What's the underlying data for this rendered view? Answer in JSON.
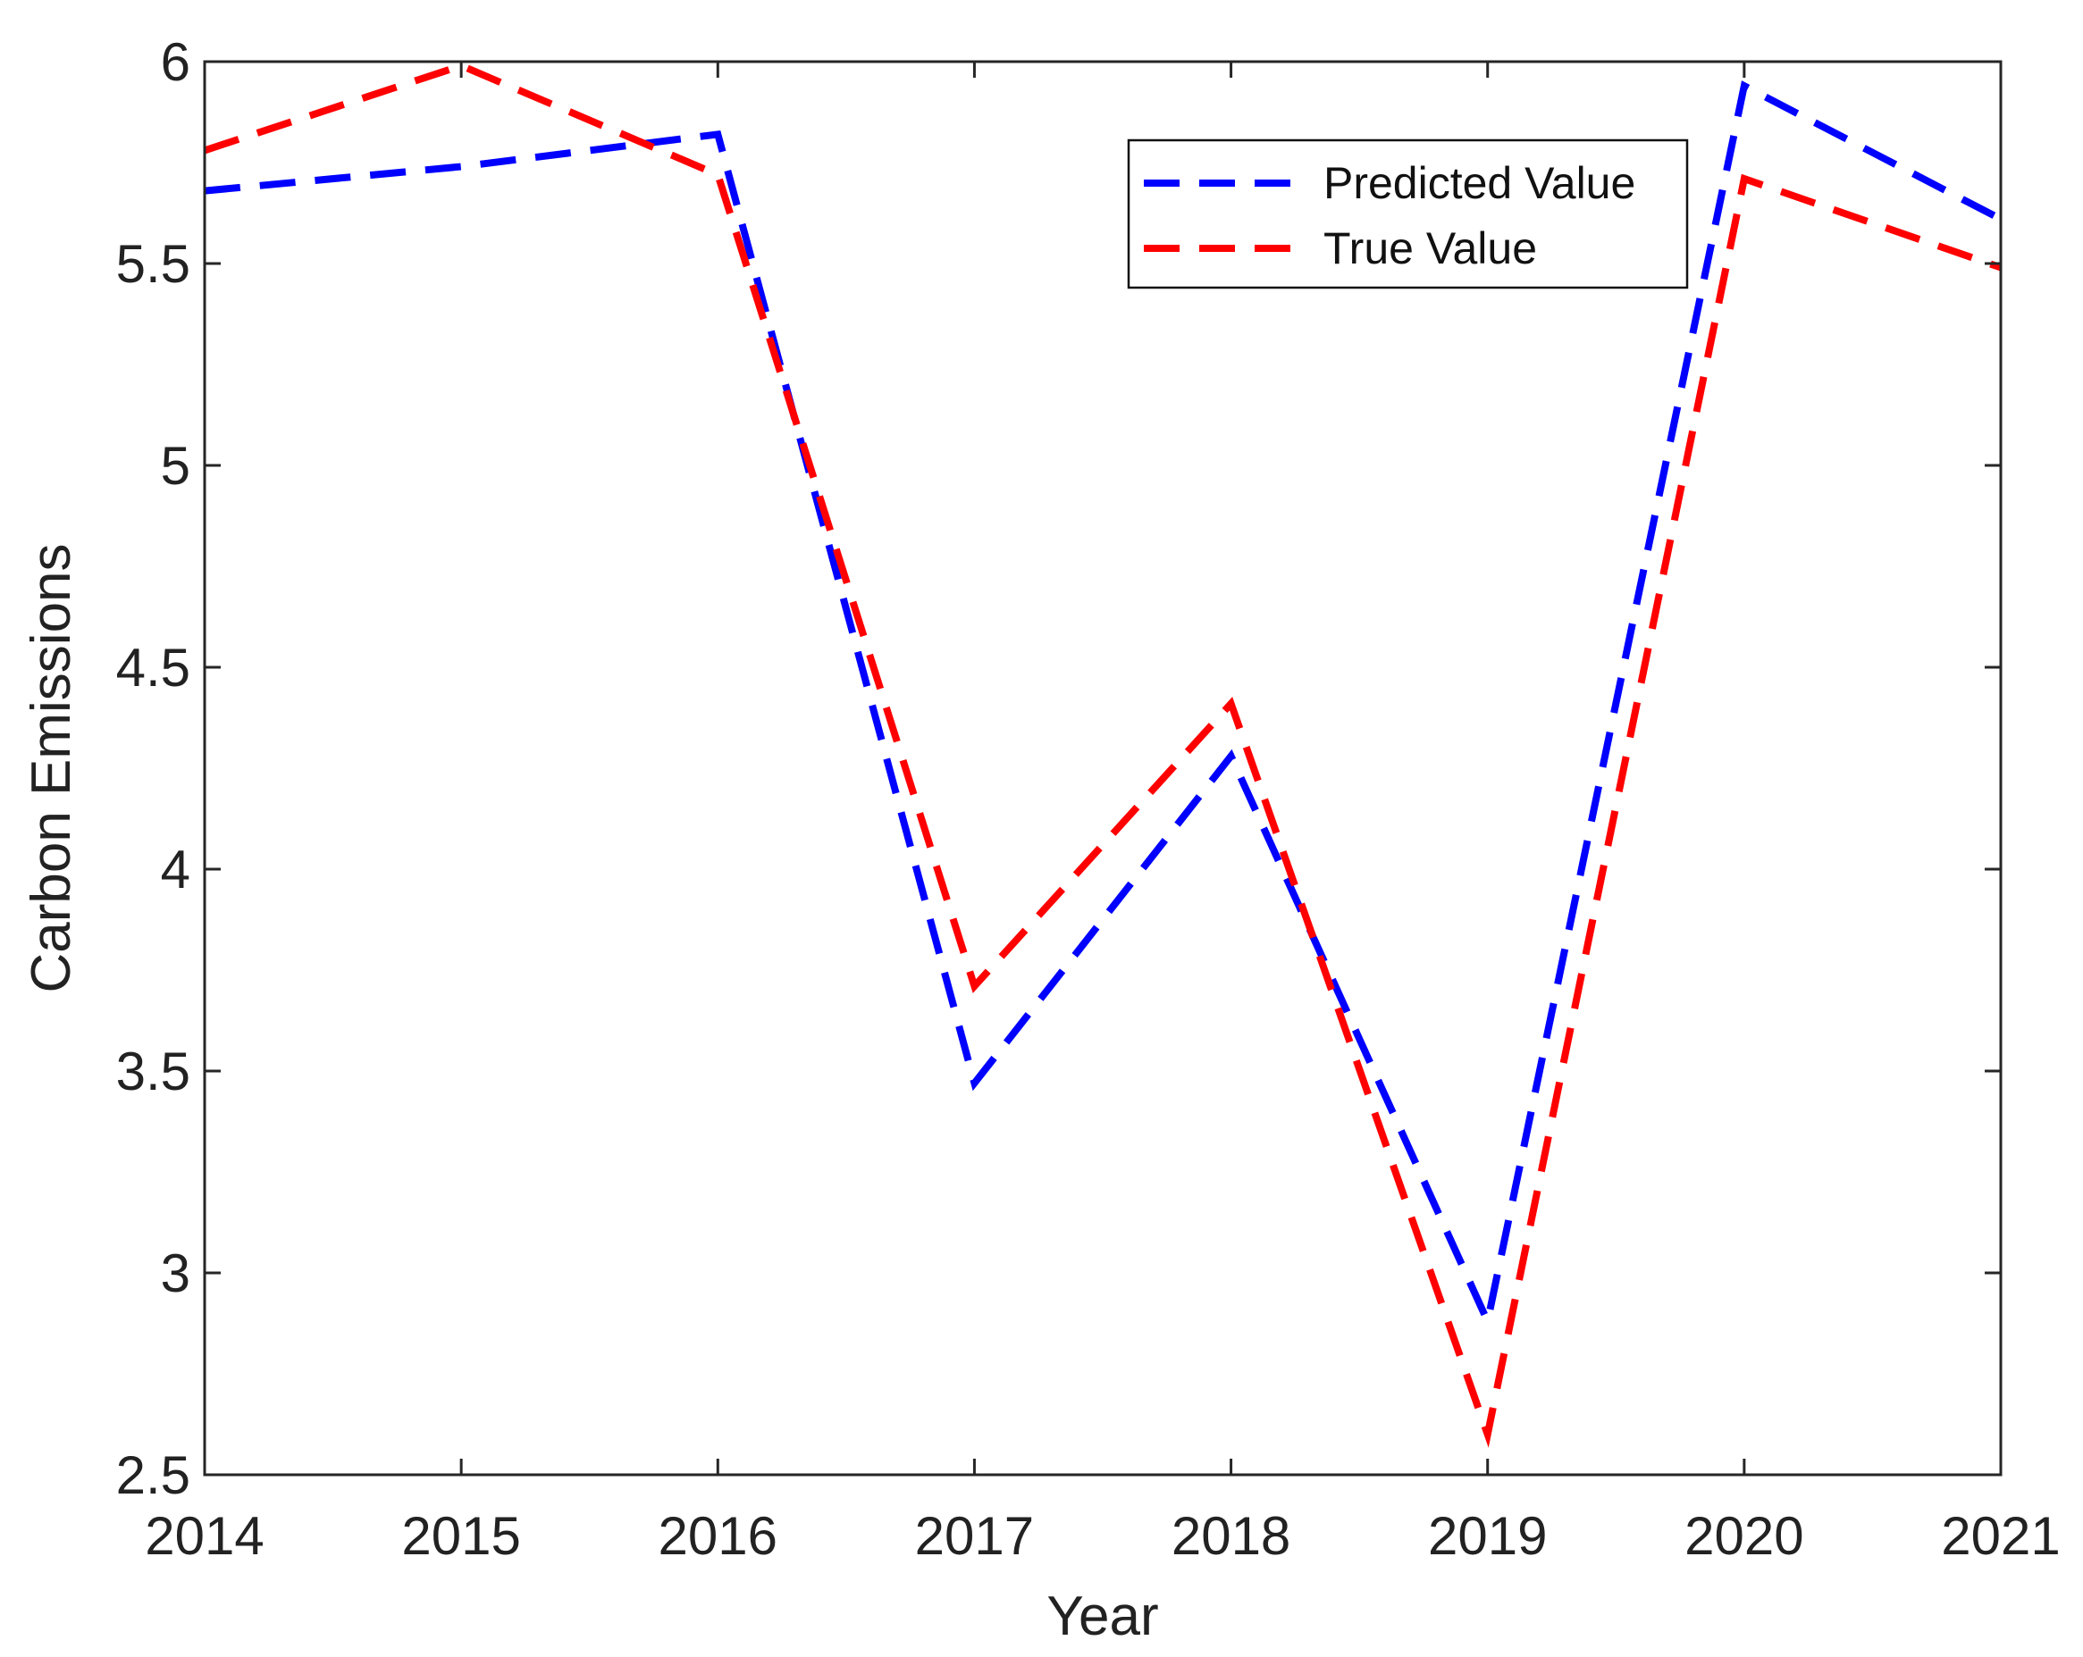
{
  "chart_data": {
    "type": "line",
    "xlabel": "Year",
    "ylabel": "Carbon Emissions",
    "x": [
      "2014",
      "2015",
      "2016",
      "2017",
      "2018",
      "2019",
      "2020",
      "2021"
    ],
    "xlim": [
      2014,
      2021
    ],
    "ylim": [
      2.5,
      6
    ],
    "yticks": [
      "2.5",
      "3",
      "3.5",
      "4",
      "4.5",
      "5",
      "5.5",
      "6"
    ],
    "grid": false,
    "legend_position": "top-right",
    "series": [
      {
        "name": "Predicted Value",
        "color": "#0000ff",
        "line_style": "dashed",
        "values": [
          5.68,
          5.74,
          5.82,
          3.47,
          4.28,
          2.88,
          5.94,
          5.61
        ]
      },
      {
        "name": "True Value",
        "color": "#ff0000",
        "line_style": "dashed",
        "values": [
          5.78,
          5.99,
          5.72,
          3.71,
          4.41,
          2.6,
          5.71,
          5.49
        ]
      }
    ]
  }
}
